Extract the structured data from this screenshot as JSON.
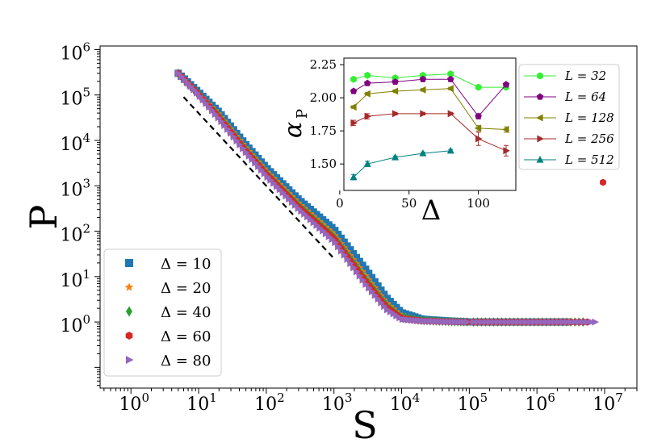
{
  "chart_data": [
    {
      "type": "scatter",
      "xlabel": "S",
      "ylabel": "P",
      "xscale": "log",
      "yscale": "log",
      "xlim": [
        0.35,
        30000000
      ],
      "ylim": [
        0.035,
        1200000
      ],
      "xticks": [
        {
          "value": 1,
          "base": "10",
          "exp": "0"
        },
        {
          "value": 10,
          "base": "10",
          "exp": "1"
        },
        {
          "value": 100,
          "base": "10",
          "exp": "2"
        },
        {
          "value": 1000,
          "base": "10",
          "exp": "3"
        },
        {
          "value": 10000,
          "base": "10",
          "exp": "4"
        },
        {
          "value": 100000,
          "base": "10",
          "exp": "5"
        },
        {
          "value": 1000000,
          "base": "10",
          "exp": "6"
        },
        {
          "value": 10000000,
          "base": "10",
          "exp": "7"
        }
      ],
      "yticks": [
        {
          "value": 1,
          "base": "10",
          "exp": "0"
        },
        {
          "value": 10,
          "base": "10",
          "exp": "1"
        },
        {
          "value": 100,
          "base": "10",
          "exp": "2"
        },
        {
          "value": 1000,
          "base": "10",
          "exp": "3"
        },
        {
          "value": 10000,
          "base": "10",
          "exp": "4"
        },
        {
          "value": 100000,
          "base": "10",
          "exp": "5"
        },
        {
          "value": 1000000,
          "base": "10",
          "exp": "6"
        }
      ],
      "legend_position": "lower-left",
      "series": [
        {
          "name": "Δ = 10",
          "marker": "square",
          "color": "#1f77b4",
          "tail_end": 2700000,
          "curve": [
            [
              5,
              300000
            ],
            [
              10,
              115000
            ],
            [
              20,
              42000
            ],
            [
              50,
              8000
            ],
            [
              100,
              2500
            ],
            [
              300,
              500
            ],
            [
              1000,
              110
            ],
            [
              3000,
              14
            ],
            [
              6000,
              3.4
            ],
            [
              10000,
              1.6
            ],
            [
              20000,
              1.15
            ],
            [
              50000,
              1.05
            ],
            [
              100000,
              1.0
            ]
          ]
        },
        {
          "name": "Δ = 20",
          "marker": "star",
          "color": "#ff7f0e",
          "tail_end": 3000000,
          "curve": [
            [
              5,
              300000
            ],
            [
              10,
              108000
            ],
            [
              20,
              37000
            ],
            [
              50,
              6800
            ],
            [
              100,
              2100
            ],
            [
              300,
              410
            ],
            [
              1000,
              85
            ],
            [
              3000,
              10
            ],
            [
              6000,
              2.6
            ],
            [
              10000,
              1.35
            ],
            [
              20000,
              1.1
            ],
            [
              50000,
              1.03
            ],
            [
              100000,
              1.0
            ]
          ]
        },
        {
          "name": "Δ = 40",
          "marker": "diamond",
          "color": "#2ca02c",
          "tail_end": 4800000,
          "curve": [
            [
              5,
              300000
            ],
            [
              10,
              105000
            ],
            [
              20,
              34000
            ],
            [
              50,
              6200
            ],
            [
              100,
              1900
            ],
            [
              300,
              370
            ],
            [
              1000,
              75
            ],
            [
              3000,
              8.5
            ],
            [
              6000,
              2.3
            ],
            [
              10000,
              1.25
            ],
            [
              20000,
              1.08
            ],
            [
              50000,
              1.02
            ],
            [
              100000,
              1.0
            ]
          ]
        },
        {
          "name": "Δ = 60",
          "marker": "hexagon",
          "color": "#d62728",
          "tail_end": 5500000,
          "curve": [
            [
              5,
              300000
            ],
            [
              10,
              103000
            ],
            [
              20,
              32000
            ],
            [
              50,
              5800
            ],
            [
              100,
              1800
            ],
            [
              300,
              340
            ],
            [
              1000,
              68
            ],
            [
              3000,
              7.5
            ],
            [
              6000,
              2.1
            ],
            [
              10000,
              1.2
            ],
            [
              20000,
              1.06
            ],
            [
              50000,
              1.02
            ],
            [
              100000,
              1.0
            ]
          ]
        },
        {
          "name": "Δ = 80",
          "marker": "triangle-right",
          "color": "#9467bd",
          "tail_end": 7200000,
          "curve": [
            [
              5,
              300000
            ],
            [
              10,
              100000
            ],
            [
              20,
              30000
            ],
            [
              50,
              5400
            ],
            [
              100,
              1650
            ],
            [
              300,
              310
            ],
            [
              1000,
              60
            ],
            [
              3000,
              6.5
            ],
            [
              6000,
              1.9
            ],
            [
              10000,
              1.15
            ],
            [
              20000,
              1.05
            ],
            [
              50000,
              1.01
            ],
            [
              100000,
              1.0
            ]
          ]
        }
      ],
      "reference_line": {
        "style": "dashed",
        "color": "#000000",
        "x": [
          6,
          1000
        ],
        "y": [
          90000,
          25
        ]
      }
    },
    {
      "type": "line",
      "inset": true,
      "xlabel": "Δ",
      "ylabel": "α",
      "ylabel_sub": "P",
      "xlim": [
        3,
        127
      ],
      "ylim": [
        1.3,
        2.3
      ],
      "xticks": [
        0,
        50,
        100
      ],
      "yticks": [
        1.5,
        1.75,
        2.0,
        2.25
      ],
      "ytick_labels": [
        "1.50",
        "1.75",
        "2.00",
        "2.25"
      ],
      "legend_position": "right-outside",
      "x": [
        10,
        20,
        40,
        60,
        80,
        100,
        120
      ],
      "series": [
        {
          "name": "L = 32",
          "marker": "hexagon",
          "color": "#33ee33",
          "values": [
            2.14,
            2.17,
            2.15,
            2.17,
            2.18,
            2.08,
            2.08
          ],
          "errors": [
            0.01,
            0.01,
            0.01,
            0.01,
            0.01,
            0.01,
            0.01
          ]
        },
        {
          "name": "L = 64",
          "marker": "pentagon",
          "color": "#800080",
          "values": [
            2.05,
            2.11,
            2.12,
            2.14,
            2.14,
            1.86,
            2.1
          ],
          "errors": [
            0.01,
            0.01,
            0.01,
            0.01,
            0.01,
            0.02,
            0.01
          ]
        },
        {
          "name": "L = 128",
          "marker": "triangle-left",
          "color": "#808000",
          "values": [
            1.93,
            2.03,
            2.05,
            2.06,
            2.07,
            1.77,
            1.76
          ],
          "errors": [
            0.01,
            0.01,
            0.01,
            0.01,
            0.01,
            0.02,
            0.02
          ]
        },
        {
          "name": "L = 256",
          "marker": "triangle-right",
          "color": "#a52a2a",
          "values": [
            1.81,
            1.86,
            1.88,
            1.88,
            1.88,
            1.69,
            1.6
          ],
          "errors": [
            0.02,
            0.02,
            0.01,
            0.01,
            0.01,
            0.05,
            0.04
          ]
        },
        {
          "name": "L = 512",
          "marker": "triangle-up",
          "color": "#008080",
          "values": [
            1.4,
            1.5,
            1.55,
            1.58,
            1.6,
            null,
            null
          ],
          "errors": [
            0.02,
            0.02,
            0.01,
            0.01,
            0.01,
            null,
            null
          ]
        }
      ],
      "stray_marker": {
        "series": "Δ = 60",
        "marker": "hexagon",
        "color": "#d62728"
      }
    }
  ]
}
